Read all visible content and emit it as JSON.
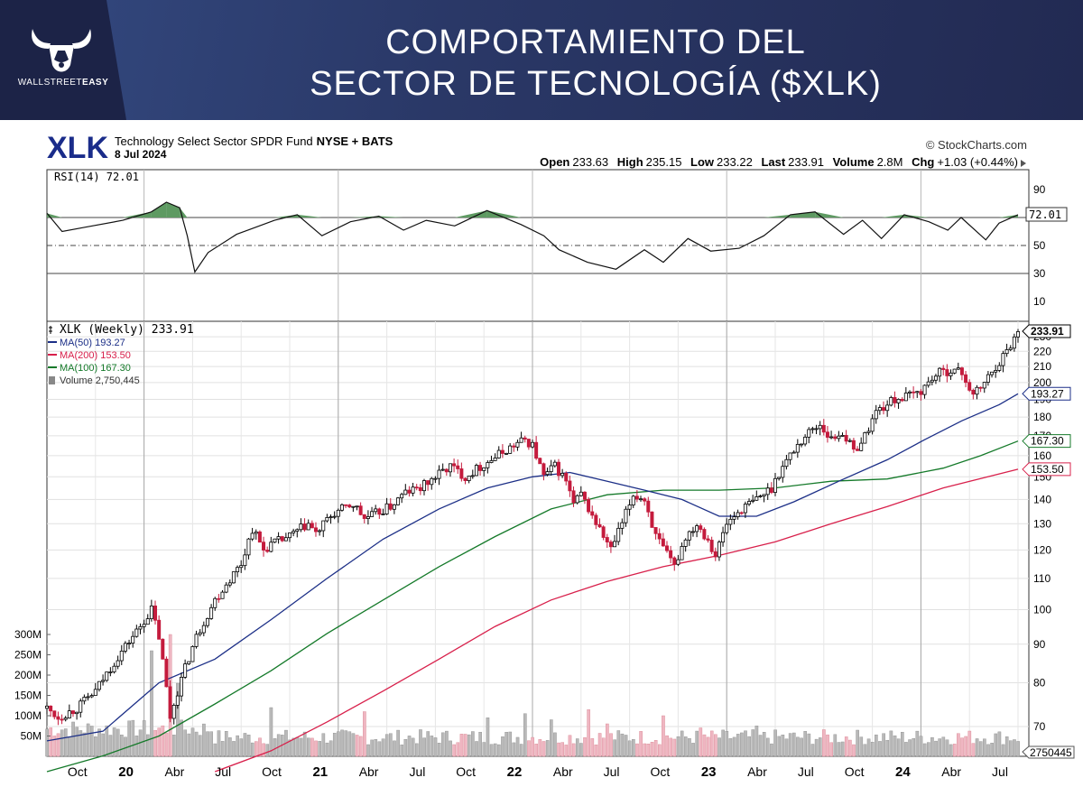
{
  "banner": {
    "title_line1": "COMPORTAMIENTO DEL",
    "title_line2": "SECTOR DE TECNOLOGÍA ($XLK)",
    "brand_plain": "WALLSTREET",
    "brand_bold": "EASY",
    "logo_icon": "bull-head-icon",
    "bg_color": "#262f5a"
  },
  "header": {
    "symbol": "XLK",
    "name": "Technology Select Sector SPDR Fund",
    "exchange": "NYSE + BATS",
    "date": "8 Jul 2024",
    "copyright": "© StockCharts.com",
    "quote": {
      "open_label": "Open",
      "open": "233.63",
      "high_label": "High",
      "high": "235.15",
      "low_label": "Low",
      "low": "233.22",
      "last_label": "Last",
      "last": "233.91",
      "volume_label": "Volume",
      "volume": "2.8M",
      "chg_label": "Chg",
      "chg": "+1.03 (+0.44%)"
    }
  },
  "chart_data": [
    {
      "type": "line",
      "title": "RSI(14) 72.01",
      "series": [
        {
          "name": "RSI(14)",
          "current": 72.01
        }
      ],
      "y_ticks": [
        90,
        70,
        50,
        30,
        10
      ],
      "ylim": [
        0,
        100
      ],
      "reference_lines": [
        70,
        50,
        30
      ],
      "current_label": "72.01",
      "x_points": [
        {
          "t": 0,
          "v": 73
        },
        {
          "t": 8,
          "v": 60
        },
        {
          "t": 20,
          "v": 63
        },
        {
          "t": 40,
          "v": 68
        },
        {
          "t": 55,
          "v": 74
        },
        {
          "t": 63,
          "v": 81
        },
        {
          "t": 70,
          "v": 77
        },
        {
          "t": 74,
          "v": 57
        },
        {
          "t": 78,
          "v": 31
        },
        {
          "t": 85,
          "v": 45
        },
        {
          "t": 100,
          "v": 58
        },
        {
          "t": 120,
          "v": 68
        },
        {
          "t": 132,
          "v": 72
        },
        {
          "t": 145,
          "v": 57
        },
        {
          "t": 160,
          "v": 67
        },
        {
          "t": 175,
          "v": 71
        },
        {
          "t": 188,
          "v": 61
        },
        {
          "t": 200,
          "v": 68
        },
        {
          "t": 215,
          "v": 64
        },
        {
          "t": 232,
          "v": 75
        },
        {
          "t": 250,
          "v": 65
        },
        {
          "t": 262,
          "v": 57
        },
        {
          "t": 270,
          "v": 47
        },
        {
          "t": 285,
          "v": 38
        },
        {
          "t": 300,
          "v": 33
        },
        {
          "t": 315,
          "v": 47
        },
        {
          "t": 325,
          "v": 38
        },
        {
          "t": 338,
          "v": 55
        },
        {
          "t": 350,
          "v": 46
        },
        {
          "t": 365,
          "v": 48
        },
        {
          "t": 378,
          "v": 57
        },
        {
          "t": 392,
          "v": 72
        },
        {
          "t": 405,
          "v": 74
        },
        {
          "t": 420,
          "v": 58
        },
        {
          "t": 430,
          "v": 68
        },
        {
          "t": 440,
          "v": 55
        },
        {
          "t": 452,
          "v": 72
        },
        {
          "t": 465,
          "v": 67
        },
        {
          "t": 475,
          "v": 61
        },
        {
          "t": 482,
          "v": 70
        },
        {
          "t": 495,
          "v": 54
        },
        {
          "t": 502,
          "v": 66
        },
        {
          "t": 512,
          "v": 72.01
        }
      ]
    },
    {
      "type": "candlestick",
      "title": "XLK (Weekly) 233.91",
      "series": [
        {
          "name": "XLK (Weekly)",
          "last": 233.91
        },
        {
          "name": "MA(50)",
          "last": 193.27,
          "color": "#1c2f87"
        },
        {
          "name": "MA(200)",
          "last": 153.5,
          "color": "#d8204b"
        },
        {
          "name": "MA(100)",
          "last": 167.3,
          "color": "#157a2a"
        },
        {
          "name": "Volume",
          "last": 2750445
        }
      ],
      "legend": [
        "XLK (Weekly) 233.91",
        "MA(50) 193.27",
        "MA(200) 153.50",
        "MA(100) 167.30",
        "Volume 2,750,445"
      ],
      "price_labels": [
        "233.91",
        "193.27",
        "167.30",
        "153.50"
      ],
      "volume_label": "2750445",
      "y_scale": "log",
      "y_ticks": [
        230,
        220,
        210,
        200,
        190,
        180,
        170,
        160,
        150,
        140,
        130,
        120,
        110,
        100,
        90,
        80,
        70
      ],
      "volume_ticks": [
        "300M",
        "250M",
        "200M",
        "150M",
        "100M",
        "50M"
      ],
      "volume_tick_values": [
        300,
        250,
        200,
        150,
        100,
        50
      ],
      "x_tick_labels": [
        "Oct",
        "20",
        "Abr",
        "Jul",
        "Oct",
        "21",
        "Abr",
        "Jul",
        "Oct",
        "22",
        "Abr",
        "Jul",
        "Oct",
        "23",
        "Abr",
        "Jul",
        "Oct",
        "24",
        "Abr",
        "Jul"
      ],
      "x_tick_weeks": [
        13,
        26,
        39,
        52,
        65,
        78,
        91,
        104,
        117,
        130,
        143,
        156,
        169,
        182,
        195,
        208,
        221,
        234,
        247,
        260
      ],
      "year_boundary_weeks": [
        26,
        78,
        130,
        182,
        234
      ],
      "close_path": [
        {
          "w": 0,
          "c": 74
        },
        {
          "w": 3,
          "c": 72
        },
        {
          "w": 8,
          "c": 74
        },
        {
          "w": 13,
          "c": 78
        },
        {
          "w": 20,
          "c": 88
        },
        {
          "w": 25,
          "c": 95
        },
        {
          "w": 28,
          "c": 100
        },
        {
          "w": 30,
          "c": 92
        },
        {
          "w": 33,
          "c": 72
        },
        {
          "w": 35,
          "c": 78
        },
        {
          "w": 40,
          "c": 92
        },
        {
          "w": 45,
          "c": 103
        },
        {
          "w": 52,
          "c": 115
        },
        {
          "w": 55,
          "c": 128
        },
        {
          "w": 58,
          "c": 120
        },
        {
          "w": 60,
          "c": 122
        },
        {
          "w": 65,
          "c": 125
        },
        {
          "w": 70,
          "c": 130
        },
        {
          "w": 72,
          "c": 126
        },
        {
          "w": 76,
          "c": 133
        },
        {
          "w": 78,
          "c": 135
        },
        {
          "w": 82,
          "c": 138
        },
        {
          "w": 85,
          "c": 132
        },
        {
          "w": 88,
          "c": 134
        },
        {
          "w": 92,
          "c": 137
        },
        {
          "w": 96,
          "c": 143
        },
        {
          "w": 100,
          "c": 145
        },
        {
          "w": 104,
          "c": 150
        },
        {
          "w": 108,
          "c": 155
        },
        {
          "w": 112,
          "c": 150
        },
        {
          "w": 118,
          "c": 157
        },
        {
          "w": 124,
          "c": 164
        },
        {
          "w": 128,
          "c": 168
        },
        {
          "w": 130,
          "c": 165
        },
        {
          "w": 133,
          "c": 150
        },
        {
          "w": 136,
          "c": 155
        },
        {
          "w": 139,
          "c": 148
        },
        {
          "w": 141,
          "c": 138
        },
        {
          "w": 143,
          "c": 142
        },
        {
          "w": 146,
          "c": 133
        },
        {
          "w": 149,
          "c": 125
        },
        {
          "w": 151,
          "c": 120
        },
        {
          "w": 154,
          "c": 130
        },
        {
          "w": 157,
          "c": 142
        },
        {
          "w": 160,
          "c": 140
        },
        {
          "w": 163,
          "c": 125
        },
        {
          "w": 166,
          "c": 118
        },
        {
          "w": 168,
          "c": 114
        },
        {
          "w": 171,
          "c": 125
        },
        {
          "w": 174,
          "c": 130
        },
        {
          "w": 177,
          "c": 124
        },
        {
          "w": 179,
          "c": 118
        },
        {
          "w": 182,
          "c": 130
        },
        {
          "w": 186,
          "c": 136
        },
        {
          "w": 190,
          "c": 140
        },
        {
          "w": 194,
          "c": 145
        },
        {
          "w": 196,
          "c": 152
        },
        {
          "w": 200,
          "c": 163
        },
        {
          "w": 204,
          "c": 172
        },
        {
          "w": 207,
          "c": 176
        },
        {
          "w": 210,
          "c": 168
        },
        {
          "w": 213,
          "c": 172
        },
        {
          "w": 216,
          "c": 162
        },
        {
          "w": 219,
          "c": 170
        },
        {
          "w": 222,
          "c": 183
        },
        {
          "w": 227,
          "c": 190
        },
        {
          "w": 231,
          "c": 192
        },
        {
          "w": 234,
          "c": 195
        },
        {
          "w": 238,
          "c": 205
        },
        {
          "w": 242,
          "c": 208
        },
        {
          "w": 245,
          "c": 206
        },
        {
          "w": 248,
          "c": 192
        },
        {
          "w": 251,
          "c": 200
        },
        {
          "w": 254,
          "c": 210
        },
        {
          "w": 257,
          "c": 220
        },
        {
          "w": 260,
          "c": 233.91
        }
      ],
      "ma50_path": [
        {
          "w": 0,
          "v": 67
        },
        {
          "w": 15,
          "v": 69
        },
        {
          "w": 30,
          "v": 80
        },
        {
          "w": 45,
          "v": 86
        },
        {
          "w": 60,
          "v": 97
        },
        {
          "w": 75,
          "v": 110
        },
        {
          "w": 90,
          "v": 124
        },
        {
          "w": 105,
          "v": 136
        },
        {
          "w": 118,
          "v": 145
        },
        {
          "w": 130,
          "v": 150
        },
        {
          "w": 140,
          "v": 152
        },
        {
          "w": 150,
          "v": 148
        },
        {
          "w": 160,
          "v": 144
        },
        {
          "w": 170,
          "v": 140
        },
        {
          "w": 180,
          "v": 133
        },
        {
          "w": 190,
          "v": 133
        },
        {
          "w": 200,
          "v": 139
        },
        {
          "w": 212,
          "v": 148
        },
        {
          "w": 225,
          "v": 158
        },
        {
          "w": 235,
          "v": 168
        },
        {
          "w": 245,
          "v": 178
        },
        {
          "w": 255,
          "v": 187
        },
        {
          "w": 260,
          "v": 193.27
        }
      ],
      "ma100_path": [
        {
          "w": 0,
          "v": 61
        },
        {
          "w": 15,
          "v": 64
        },
        {
          "w": 30,
          "v": 68
        },
        {
          "w": 45,
          "v": 75
        },
        {
          "w": 60,
          "v": 83
        },
        {
          "w": 75,
          "v": 93
        },
        {
          "w": 90,
          "v": 103
        },
        {
          "w": 105,
          "v": 114
        },
        {
          "w": 120,
          "v": 125
        },
        {
          "w": 135,
          "v": 136
        },
        {
          "w": 150,
          "v": 142
        },
        {
          "w": 165,
          "v": 144
        },
        {
          "w": 180,
          "v": 144
        },
        {
          "w": 195,
          "v": 145
        },
        {
          "w": 210,
          "v": 148
        },
        {
          "w": 225,
          "v": 149
        },
        {
          "w": 240,
          "v": 154
        },
        {
          "w": 250,
          "v": 160
        },
        {
          "w": 260,
          "v": 167.3
        }
      ],
      "ma200_path": [
        {
          "w": 45,
          "v": 61
        },
        {
          "w": 60,
          "v": 65
        },
        {
          "w": 75,
          "v": 71
        },
        {
          "w": 90,
          "v": 78
        },
        {
          "w": 105,
          "v": 86
        },
        {
          "w": 120,
          "v": 95
        },
        {
          "w": 135,
          "v": 103
        },
        {
          "w": 150,
          "v": 109
        },
        {
          "w": 165,
          "v": 114
        },
        {
          "w": 180,
          "v": 118
        },
        {
          "w": 195,
          "v": 123
        },
        {
          "w": 210,
          "v": 130
        },
        {
          "w": 225,
          "v": 137
        },
        {
          "w": 240,
          "v": 145
        },
        {
          "w": 260,
          "v": 153.5
        }
      ],
      "volume_spikes": [
        {
          "w": 28,
          "v": 260
        },
        {
          "w": 33,
          "v": 300
        },
        {
          "w": 35,
          "v": 180
        },
        {
          "w": 60,
          "v": 120
        },
        {
          "w": 85,
          "v": 110
        },
        {
          "w": 118,
          "v": 95
        },
        {
          "w": 128,
          "v": 105
        },
        {
          "w": 135,
          "v": 90
        },
        {
          "w": 145,
          "v": 115
        },
        {
          "w": 150,
          "v": 80
        },
        {
          "w": 165,
          "v": 100
        },
        {
          "w": 175,
          "v": 70
        },
        {
          "w": 190,
          "v": 75
        }
      ]
    }
  ]
}
